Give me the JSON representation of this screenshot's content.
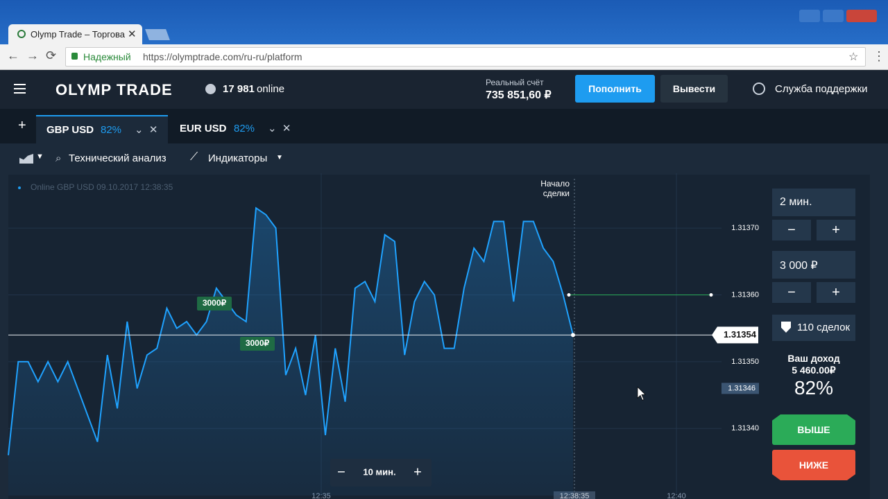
{
  "browser": {
    "tab_title": "Olymp Trade – Торгова",
    "secure_label": "Надежный",
    "url": "https://olymptrade.com/ru-ru/platform"
  },
  "header": {
    "logo": "OLYMP TRADE",
    "online_count": "17 981",
    "online_label": "online",
    "account_label": "Реальный счёт",
    "balance": "735 851,60 ₽",
    "deposit_button": "Пополнить",
    "withdraw_button": "Вывести",
    "support": "Служба поддержки"
  },
  "tabs": [
    {
      "name": "GBP USD",
      "payout": "82%"
    },
    {
      "name": "EUR USD",
      "payout": "82%"
    }
  ],
  "toolbar": {
    "technical_analysis": "Технический анализ",
    "indicators": "Индикаторы"
  },
  "chart": {
    "type": "line",
    "legend": "Online GBP USD 09.10.2017 12:38:35",
    "deal_start": [
      "Начало",
      "сделки"
    ],
    "values": [
      1.31336,
      1.3135,
      1.3135,
      1.31347,
      1.3135,
      1.31347,
      1.3135,
      1.31346,
      1.31342,
      1.31338,
      1.31351,
      1.31343,
      1.31356,
      1.31346,
      1.31351,
      1.31352,
      1.31358,
      1.31355,
      1.31356,
      1.31354,
      1.31356,
      1.31361,
      1.31359,
      1.31357,
      1.31356,
      1.31373,
      1.31372,
      1.3137,
      1.31348,
      1.31352,
      1.31345,
      1.31354,
      1.31339,
      1.31352,
      1.31344,
      1.31361,
      1.31362,
      1.31359,
      1.31369,
      1.31368,
      1.31351,
      1.31359,
      1.31362,
      1.3136,
      1.31352,
      1.31352,
      1.31361,
      1.31367,
      1.31365,
      1.31371,
      1.31371,
      1.31359,
      1.31371,
      1.31371,
      1.31367,
      1.31365,
      1.3136,
      1.31354
    ],
    "color": "#1fa2ff",
    "ylim": [
      1.31331,
      1.31378
    ],
    "yticks": [
      {
        "value": 1.3137,
        "label": "1.31370"
      },
      {
        "value": 1.3136,
        "label": "1.31360"
      },
      {
        "value": 1.3135,
        "label": "1.31350"
      },
      {
        "value": 1.3134,
        "label": "1.31340"
      }
    ],
    "current_price": 1.31354,
    "cursor_price": 1.31346,
    "deal_price": 1.3136,
    "trades": [
      "3000₽",
      "3000₽"
    ],
    "time_labels": [
      "12:35",
      "12:38:35",
      "12:40"
    ],
    "zoom_label": "10 мин."
  },
  "panel": {
    "duration": "2 мин.",
    "amount": "3 000 ₽",
    "deals": "110 сделок",
    "income_label": "Ваш доход",
    "income": "5 460.00₽",
    "payout": "82%",
    "up": "ВЫШЕ",
    "down": "НИЖЕ"
  }
}
